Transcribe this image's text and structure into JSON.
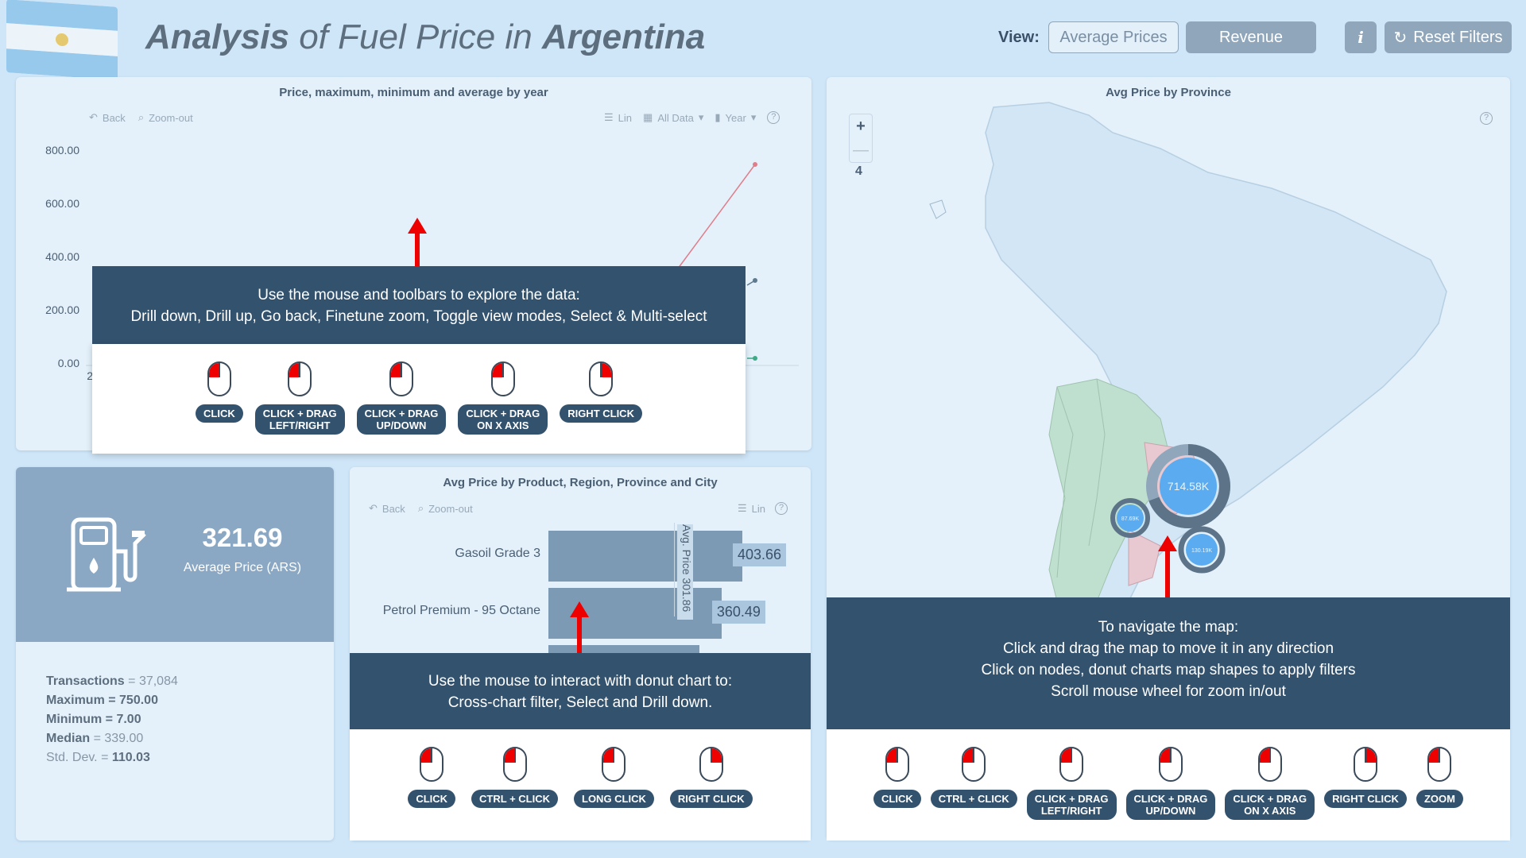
{
  "header": {
    "title_part1": "Analysis",
    "title_part2": " of Fuel Price in ",
    "title_part3": "Argentina",
    "view_label": "View:",
    "view_options": [
      "Average Prices",
      "Revenue"
    ],
    "info_label": "i",
    "reset_label": "Reset Filters"
  },
  "line_panel": {
    "title": "Price, maximum, minimum and average by year",
    "toolbar": {
      "back": "Back",
      "zoom_out": "Zoom-out",
      "scale": "Lin",
      "data": "All Data",
      "period": "Year",
      "help": "?"
    },
    "yticks": [
      "800.00",
      "600.00",
      "400.00",
      "200.00",
      "0.00"
    ],
    "x_partial": "2",
    "overlay": {
      "line1": "Use the mouse and toolbars to explore the data:",
      "line2": "Drill down, Drill up, Go back, Finetune zoom, Toggle view modes, Select & Multi-select",
      "actions": [
        {
          "l1": "CLICK",
          "l2": ""
        },
        {
          "l1": "CLICK + DRAG",
          "l2": "LEFT/RIGHT"
        },
        {
          "l1": "CLICK + DRAG",
          "l2": "UP/DOWN"
        },
        {
          "l1": "CLICK + DRAG",
          "l2": "ON X AXIS"
        },
        {
          "l1": "RIGHT CLICK",
          "l2": ""
        }
      ]
    }
  },
  "kpi": {
    "value": "321.69",
    "label": "Average Price (ARS)",
    "transactions_label": "Transactions",
    "transactions": "37,084",
    "maximum_label": "Maximum",
    "maximum": "750.00",
    "minimum_label": "Minimum",
    "minimum": "7.00",
    "median_label": "Median",
    "median": "339.00",
    "stddev_label": "Std. Dev.",
    "stddev": "110.03",
    "eq": " = "
  },
  "bar_panel": {
    "title": "Avg Price by Product, Region, Province and City",
    "toolbar": {
      "back": "Back",
      "zoom_out": "Zoom-out",
      "scale": "Lin",
      "help": "?"
    },
    "ref_line_label": "Avg. Price 301.86",
    "overlay": {
      "line1": "Use the mouse to interact with donut chart to:",
      "line2": "Cross-chart filter, Select and Drill down.",
      "actions": [
        "CLICK",
        "CTRL + CLICK",
        "LONG CLICK",
        "RIGHT CLICK"
      ]
    }
  },
  "map_panel": {
    "title": "Avg Price by Province",
    "zoom_in": "+",
    "zoom_out": "—",
    "zoom_level": "4",
    "help": "?",
    "donut_main": "714.58K",
    "donut_small_1": "87.69K",
    "donut_small_2": "130.19K",
    "overlay": {
      "line1": "To navigate the map:",
      "line2": "Click and drag the map to move it in any direction",
      "line3": "Click on nodes, donut charts map shapes to apply filters",
      "line4": "Scroll mouse wheel for zoom in/out",
      "actions": [
        {
          "l1": "CLICK",
          "l2": ""
        },
        {
          "l1": "CTRL + CLICK",
          "l2": ""
        },
        {
          "l1": "CLICK + DRAG",
          "l2": "LEFT/RIGHT"
        },
        {
          "l1": "CLICK + DRAG",
          "l2": "UP/DOWN"
        },
        {
          "l1": "CLICK + DRAG",
          "l2": "ON X AXIS"
        },
        {
          "l1": "RIGHT CLICK",
          "l2": ""
        },
        {
          "l1": "ZOOM",
          "l2": ""
        }
      ]
    }
  },
  "chart_data": {
    "type": "bar",
    "categories": [
      "Gasoil Grade 3",
      "Petrol Premium - 95 Octane"
    ],
    "values": [
      403.66,
      360.49
    ],
    "data_labels": [
      "403.66",
      "360.49"
    ],
    "reference_line": 301.86
  },
  "colors": {
    "accent": "#33526e",
    "bar": "#7d9ab5",
    "highlight": "#e00000",
    "donut": "#5aabef"
  }
}
